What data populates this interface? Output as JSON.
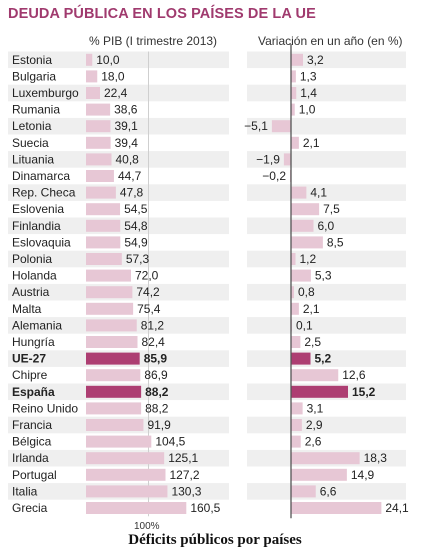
{
  "title": "DEUDA PÚBLICA EN LOS PAÍSES DE LA UE",
  "caption": "Déficits públicos por países",
  "chart_data": {
    "type": "bar",
    "title": "DEUDA PÚBLICA EN LOS PAÍSES DE LA UE",
    "highlight": [
      "UE-27",
      "España"
    ],
    "colors": {
      "bar": "#e7c7d5",
      "highlight": "#ad3e72",
      "stripe": "#efefef",
      "zero_line": "#555555"
    },
    "categories": [
      "Estonia",
      "Bulgaria",
      "Luxemburgo",
      "Rumania",
      "Letonia",
      "Suecia",
      "Lituania",
      "Dinamarca",
      "Rep. Checa",
      "Eslovenia",
      "Finlandia",
      "Eslovaquia",
      "Polonia",
      "Holanda",
      "Austria",
      "Malta",
      "Alemania",
      "Hungría",
      "UE-27",
      "Chipre",
      "España",
      "Reino Unido",
      "Francia",
      "Bélgica",
      "Irlanda",
      "Portugal",
      "Italia",
      "Grecia"
    ],
    "series": [
      {
        "name": "% PIB (I trimestre 2013)",
        "labels": [
          "10,0",
          "18,0",
          "22,4",
          "38,6",
          "39,1",
          "39,4",
          "40,8",
          "44,7",
          "47,8",
          "54,5",
          "54,8",
          "54,9",
          "57,3",
          "72,0",
          "74,2",
          "75,4",
          "81,2",
          "82,4",
          "85,9",
          "86,9",
          "88,2",
          "88,2",
          "91,9",
          "104,5",
          "125,1",
          "127,2",
          "130,3",
          "160,5"
        ],
        "values": [
          10.0,
          18.0,
          22.4,
          38.6,
          39.1,
          39.4,
          40.8,
          44.7,
          47.8,
          54.5,
          54.8,
          54.9,
          57.3,
          72.0,
          74.2,
          75.4,
          81.2,
          82.4,
          85.9,
          86.9,
          88.2,
          88.2,
          91.9,
          104.5,
          125.1,
          127.2,
          130.3,
          160.5
        ],
        "reference_tick": "100%",
        "xlim": [
          0,
          160.5
        ]
      },
      {
        "name": "Variación en un año (en %)",
        "labels": [
          "3,2",
          "1,3",
          "1,4",
          "1,0",
          "−5,1",
          "2,1",
          "−1,9",
          "−0,2",
          "4,1",
          "7,5",
          "6,0",
          "8,5",
          "1,2",
          "5,3",
          "0,8",
          "2,1",
          "0,1",
          "2,5",
          "5,2",
          "12,6",
          "15,2",
          "3,1",
          "2,9",
          "2,6",
          "18,3",
          "14,9",
          "6,6",
          "24,1"
        ],
        "values": [
          3.2,
          1.3,
          1.4,
          1.0,
          -5.1,
          2.1,
          -1.9,
          -0.2,
          4.1,
          7.5,
          6.0,
          8.5,
          1.2,
          5.3,
          0.8,
          2.1,
          0.1,
          2.5,
          5.2,
          12.6,
          15.2,
          3.1,
          2.9,
          2.6,
          18.3,
          14.9,
          6.6,
          24.1
        ],
        "xlim": [
          -5.1,
          24.1
        ]
      }
    ]
  }
}
